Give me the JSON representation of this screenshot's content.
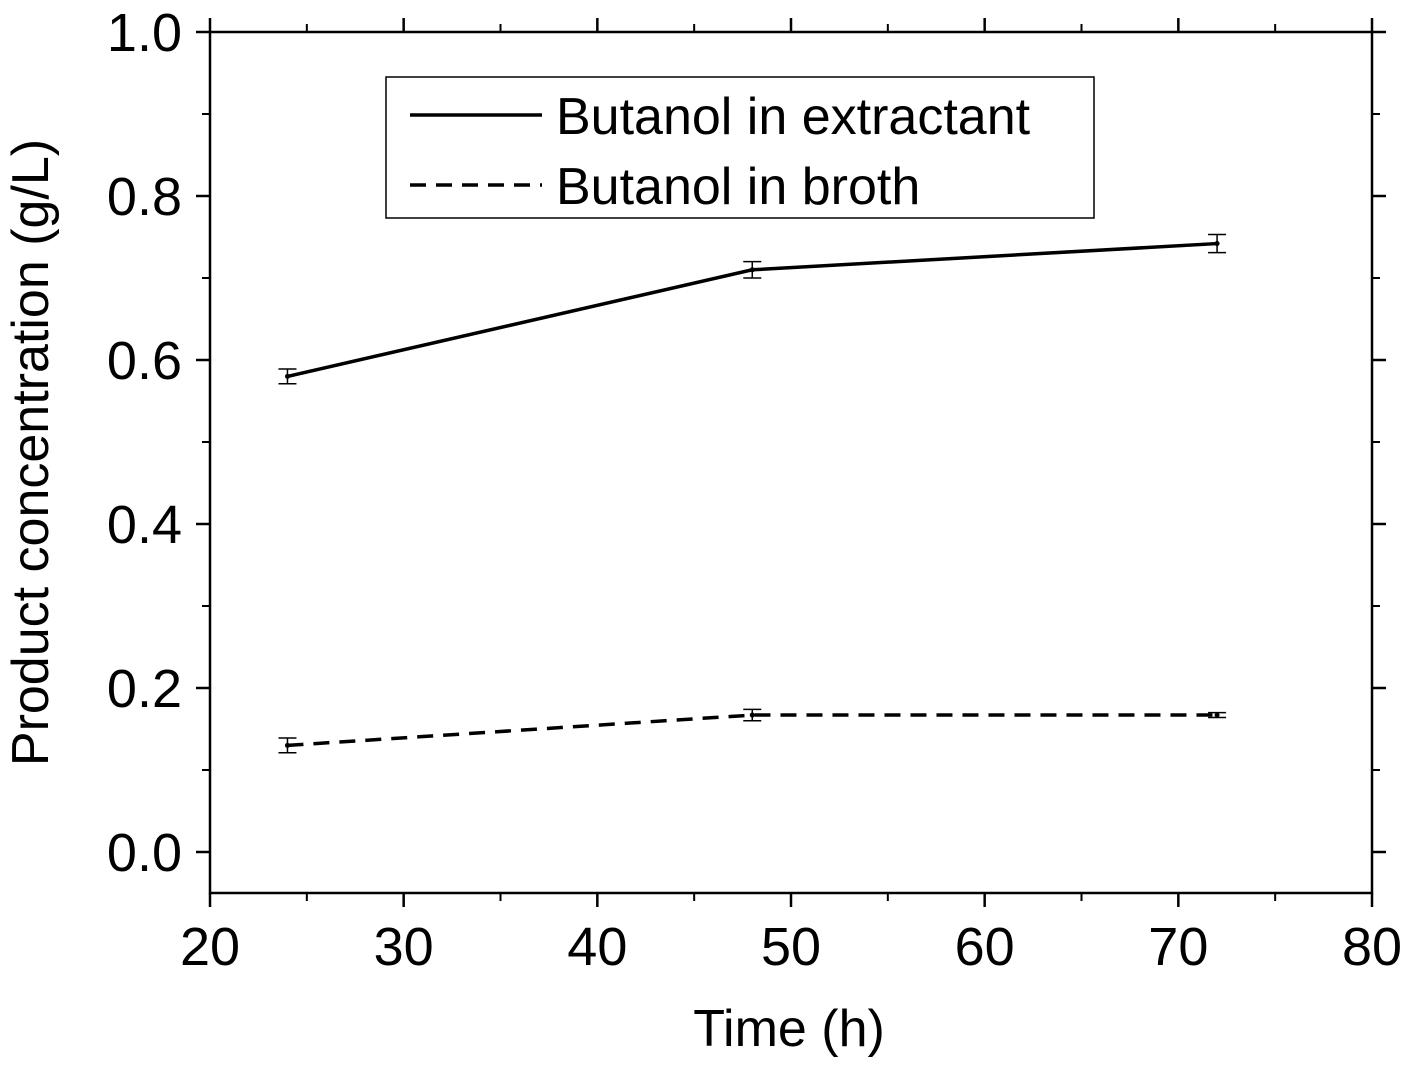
{
  "chart_data": {
    "type": "line",
    "xlabel": "Time (h)",
    "ylabel": "Product concentration (g/L)",
    "xlim": [
      20,
      80
    ],
    "ylim": [
      -0.05,
      1.0
    ],
    "x_ticks": [
      20,
      30,
      40,
      50,
      60,
      70,
      80
    ],
    "x_tick_labels": [
      "20",
      "30",
      "40",
      "50",
      "60",
      "70",
      "80"
    ],
    "y_ticks": [
      0.0,
      0.2,
      0.4,
      0.6,
      0.8,
      1.0
    ],
    "y_tick_labels": [
      "0.0",
      "0.2",
      "0.4",
      "0.6",
      "0.8",
      "1.0"
    ],
    "grid": false,
    "legend_position": "top-center",
    "series": [
      {
        "name": "Butanol in extractant",
        "line_style": "solid",
        "color": "#000000",
        "x": [
          24,
          48,
          72
        ],
        "y": [
          0.58,
          0.71,
          0.742
        ],
        "error": [
          0.009,
          0.01,
          0.011
        ]
      },
      {
        "name": "Butanol in broth",
        "line_style": "dashed",
        "color": "#000000",
        "x": [
          24,
          48,
          72
        ],
        "y": [
          0.13,
          0.167,
          0.167
        ],
        "error": [
          0.009,
          0.007,
          0.003
        ]
      }
    ]
  }
}
